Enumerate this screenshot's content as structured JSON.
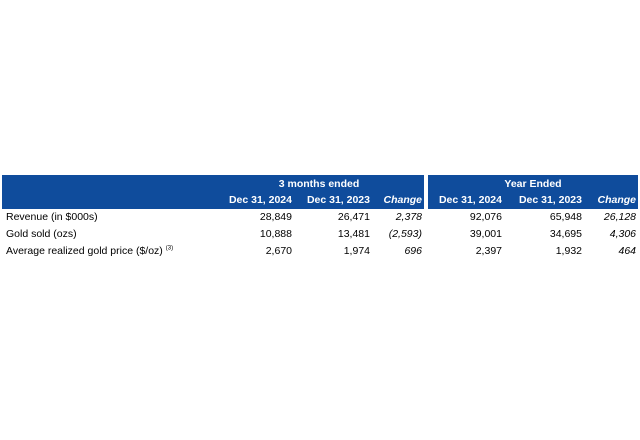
{
  "table": {
    "groups": [
      "3 months ended",
      "Year Ended"
    ],
    "columns": [
      "Dec 31, 2024",
      "Dec 31, 2023",
      "Change",
      "Dec 31, 2024",
      "Dec 31, 2023",
      "Change"
    ],
    "rows": [
      {
        "label": "Revenue (in $000s)",
        "note": "",
        "q_2024": "28,849",
        "q_2023": "26,471",
        "q_change": "2,378",
        "y_2024": "92,076",
        "y_2023": "65,948",
        "y_change": "26,128"
      },
      {
        "label": "Gold sold (ozs)",
        "note": "",
        "q_2024": "10,888",
        "q_2023": "13,481",
        "q_change": "(2,593)",
        "y_2024": "39,001",
        "y_2023": "34,695",
        "y_change": "4,306"
      },
      {
        "label": "Average realized gold price ($/oz)",
        "note": "(3)",
        "q_2024": "2,670",
        "q_2023": "1,974",
        "q_change": "696",
        "y_2024": "2,397",
        "y_2023": "1,932",
        "y_change": "464"
      }
    ]
  }
}
